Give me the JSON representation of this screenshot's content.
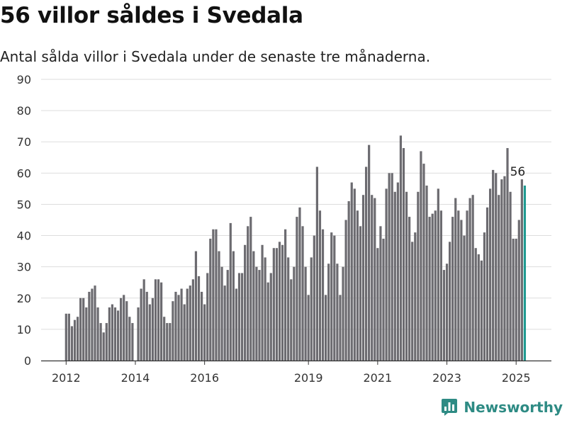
{
  "header": {
    "title": "56 villor såldes i Svedala",
    "subtitle": "Antal sålda villor i Svedala under de senaste tre månaderna."
  },
  "brand": {
    "name": "Newsworthy",
    "color": "#2e8b84",
    "icon": "bar-chart-logo-icon"
  },
  "colors": {
    "bar": "#6c6b70",
    "highlight": "#1f9a91",
    "grid": "#dddddd",
    "axis": "#333333"
  },
  "chart_data": {
    "type": "bar",
    "title": "56 villor såldes i Svedala",
    "subtitle": "Antal sålda villor i Svedala under de senaste tre månaderna.",
    "xlabel": "",
    "ylabel": "",
    "ylim": [
      0,
      90
    ],
    "yticks": [
      0,
      10,
      20,
      30,
      40,
      50,
      60,
      70,
      80,
      90
    ],
    "grid": true,
    "x_start": "2012-01",
    "x_frequency": "monthly",
    "xticks": [
      {
        "label": "2012",
        "date": "2012-01"
      },
      {
        "label": "2014",
        "date": "2014-01"
      },
      {
        "label": "2016",
        "date": "2016-01"
      },
      {
        "label": "2019",
        "date": "2019-01"
      },
      {
        "label": "2021",
        "date": "2021-01"
      },
      {
        "label": "2023",
        "date": "2023-01"
      },
      {
        "label": "2025",
        "date": "2025-01"
      }
    ],
    "values": [
      15,
      15,
      11,
      13,
      14,
      20,
      20,
      17,
      22,
      23,
      24,
      17,
      12,
      9,
      12,
      17,
      18,
      17,
      16,
      20,
      21,
      19,
      14,
      12,
      null,
      17,
      23,
      26,
      22,
      18,
      20,
      26,
      26,
      25,
      14,
      12,
      12,
      19,
      22,
      21,
      23,
      18,
      23,
      24,
      26,
      35,
      27,
      22,
      18,
      28,
      39,
      42,
      42,
      35,
      30,
      24,
      29,
      44,
      35,
      23,
      28,
      28,
      37,
      43,
      46,
      35,
      30,
      29,
      37,
      33,
      25,
      28,
      36,
      36,
      38,
      37,
      42,
      33,
      26,
      30,
      46,
      49,
      43,
      30,
      21,
      33,
      40,
      62,
      48,
      42,
      21,
      31,
      41,
      40,
      31,
      21,
      30,
      45,
      51,
      57,
      55,
      48,
      43,
      53,
      62,
      69,
      53,
      52,
      36,
      43,
      39,
      55,
      60,
      60,
      54,
      57,
      72,
      68,
      54,
      46,
      38,
      41,
      54,
      67,
      63,
      56,
      46,
      47,
      48,
      55,
      48,
      29,
      31,
      38,
      46,
      52,
      48,
      45,
      40,
      48,
      52,
      53,
      36,
      34,
      32,
      41,
      49,
      55,
      61,
      60,
      53,
      58,
      59,
      68,
      54,
      39,
      39,
      45,
      58,
      56
    ],
    "highlight_last": true,
    "annotations": [
      {
        "text": "56",
        "target": "last"
      }
    ]
  }
}
